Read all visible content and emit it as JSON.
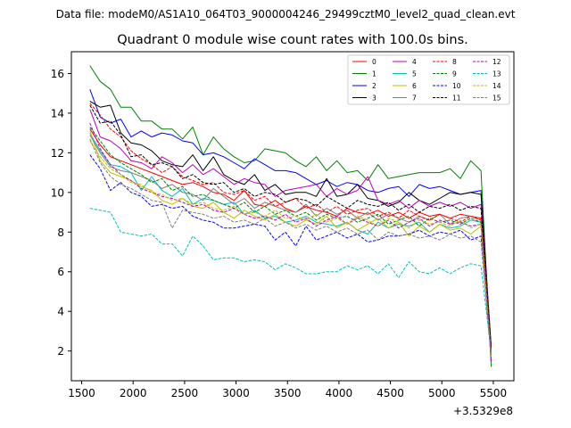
{
  "chart_data": {
    "type": "line",
    "suptitle": "Data file: modeM0/AS1A10_064T03_9000004246_29499cztM0_level2_quad_clean.evt",
    "title": "Quadrant 0 module wise count rates with 100.0s bins.",
    "xlabel": "",
    "ylabel": "",
    "x_offset_label": "+3.5329e8",
    "xlim": [
      1400,
      5700
    ],
    "ylim": [
      0.5,
      17.1
    ],
    "xticks": [
      1500,
      2000,
      2500,
      3000,
      3500,
      4000,
      4500,
      5000,
      5500
    ],
    "yticks": [
      2,
      4,
      6,
      8,
      10,
      12,
      14,
      16
    ],
    "x": [
      1580,
      1680,
      1780,
      1880,
      1980,
      2080,
      2180,
      2280,
      2380,
      2480,
      2580,
      2680,
      2780,
      2880,
      2980,
      3080,
      3180,
      3280,
      3380,
      3480,
      3580,
      3680,
      3780,
      3880,
      3980,
      4080,
      4180,
      4280,
      4380,
      4480,
      4580,
      4680,
      4780,
      4880,
      4980,
      5080,
      5180,
      5280,
      5380,
      5480
    ],
    "legend_location": "upper right",
    "series": [
      {
        "name": "0",
        "color": "#ff0000",
        "dash": "solid",
        "values": [
          13.2,
          12.4,
          11.8,
          11.6,
          11.4,
          11.2,
          11.0,
          10.8,
          10.6,
          10.4,
          10.5,
          10.3,
          10.0,
          9.9,
          9.6,
          10.1,
          9.4,
          9.3,
          9.6,
          9.2,
          9.0,
          9.3,
          9.1,
          9.0,
          8.8,
          9.2,
          9.0,
          8.9,
          9.1,
          8.8,
          9.0,
          8.7,
          9.0,
          8.8,
          8.9,
          8.7,
          8.9,
          8.8,
          8.7,
          1.5
        ]
      },
      {
        "name": "1",
        "color": "#008000",
        "dash": "solid",
        "values": [
          16.4,
          15.6,
          15.2,
          14.3,
          14.3,
          13.6,
          13.6,
          13.2,
          13.2,
          12.7,
          13.3,
          11.9,
          12.8,
          12.2,
          11.8,
          11.5,
          11.6,
          12.2,
          12.1,
          12.0,
          11.6,
          11.3,
          11.8,
          11.1,
          11.6,
          11.0,
          11.1,
          10.6,
          11.4,
          10.7,
          10.8,
          10.9,
          11.0,
          11.0,
          11.0,
          11.2,
          10.7,
          11.6,
          11.1,
          1.2
        ]
      },
      {
        "name": "2",
        "color": "#0000ff",
        "dash": "solid",
        "values": [
          15.2,
          13.8,
          13.5,
          13.7,
          12.8,
          13.1,
          12.8,
          13.0,
          12.9,
          12.6,
          12.5,
          11.9,
          12.0,
          11.8,
          11.5,
          11.2,
          11.7,
          11.4,
          11.1,
          11.1,
          11.0,
          10.7,
          10.4,
          10.6,
          10.3,
          10.5,
          10.4,
          10.1,
          10.0,
          10.2,
          10.3,
          9.8,
          10.4,
          10.2,
          10.3,
          10.1,
          9.9,
          10.0,
          10.1,
          1.8
        ]
      },
      {
        "name": "3",
        "color": "#000000",
        "dash": "solid",
        "values": [
          14.6,
          14.3,
          14.4,
          13.0,
          12.5,
          12.4,
          12.1,
          11.6,
          11.4,
          11.3,
          11.9,
          11.1,
          11.8,
          10.9,
          10.6,
          10.4,
          10.9,
          10.1,
          10.4,
          9.9,
          10.0,
          10.0,
          9.8,
          10.7,
          9.8,
          9.9,
          10.4,
          9.7,
          9.6,
          9.3,
          9.5,
          10.0,
          9.6,
          9.4,
          9.7,
          10.0,
          9.9,
          10.0,
          9.9,
          2.2
        ]
      },
      {
        "name": "4",
        "color": "#bf00bf",
        "dash": "solid",
        "values": [
          14.2,
          12.8,
          12.6,
          12.2,
          11.6,
          11.5,
          11.2,
          11.8,
          11.5,
          11.0,
          11.4,
          10.9,
          11.2,
          10.8,
          10.4,
          10.7,
          10.5,
          10.4,
          9.8,
          10.1,
          10.2,
          10.3,
          10.4,
          9.8,
          10.2,
          9.9,
          10.1,
          10.8,
          9.6,
          9.4,
          9.6,
          9.2,
          9.6,
          9.3,
          9.5,
          9.3,
          9.5,
          9.2,
          9.4,
          2.1
        ]
      },
      {
        "name": "5",
        "color": "#00bfbf",
        "dash": "solid",
        "values": [
          13.0,
          12.1,
          11.4,
          11.3,
          11.0,
          10.1,
          10.8,
          10.1,
          9.8,
          10.2,
          9.4,
          9.7,
          9.6,
          9.4,
          9.5,
          8.9,
          9.1,
          8.7,
          8.8,
          8.5,
          8.6,
          8.8,
          8.5,
          8.4,
          8.3,
          8.5,
          8.1,
          7.9,
          8.5,
          8.2,
          8.4,
          8.3,
          8.5,
          8.0,
          8.4,
          8.2,
          8.3,
          8.6,
          8.5,
          1.6
        ]
      },
      {
        "name": "6",
        "color": "#bfbf00",
        "dash": "solid",
        "values": [
          13.1,
          11.6,
          11.0,
          10.8,
          10.6,
          10.3,
          10.1,
          9.6,
          9.4,
          9.7,
          9.3,
          9.2,
          9.5,
          9.0,
          8.7,
          9.1,
          8.8,
          8.6,
          8.9,
          8.5,
          8.3,
          8.6,
          8.4,
          8.8,
          8.2,
          8.5,
          8.1,
          8.4,
          8.7,
          8.2,
          8.5,
          7.8,
          8.3,
          8.0,
          8.4,
          8.1,
          8.2,
          7.9,
          8.3,
          1.7
        ]
      },
      {
        "name": "7",
        "color": "#808080",
        "dash": "solid",
        "values": [
          12.9,
          12.0,
          11.3,
          11.1,
          11.0,
          10.8,
          10.6,
          10.2,
          10.4,
          10.0,
          9.9,
          9.6,
          10.2,
          9.8,
          9.4,
          9.7,
          9.2,
          9.5,
          9.3,
          9.1,
          9.0,
          9.4,
          8.8,
          9.2,
          8.9,
          9.1,
          8.7,
          9.0,
          8.6,
          8.9,
          8.7,
          8.5,
          8.8,
          8.6,
          8.9,
          8.4,
          8.7,
          8.8,
          8.6,
          1.9
        ]
      },
      {
        "name": "8",
        "color": "#ff0000",
        "dash": "dashed",
        "values": [
          14.5,
          13.9,
          13.2,
          12.8,
          12.1,
          11.7,
          11.4,
          11.0,
          11.3,
          10.8,
          10.6,
          10.4,
          10.5,
          10.0,
          9.9,
          10.1,
          9.6,
          9.8,
          9.3,
          9.5,
          9.7,
          9.2,
          9.4,
          9.0,
          9.3,
          8.9,
          9.1,
          9.2,
          8.8,
          9.0,
          8.7,
          9.1,
          8.8,
          8.6,
          8.9,
          8.7,
          8.5,
          8.8,
          8.6,
          2.0
        ]
      },
      {
        "name": "9",
        "color": "#008000",
        "dash": "dashed",
        "values": [
          13.3,
          12.6,
          11.9,
          11.5,
          11.2,
          10.9,
          10.5,
          10.7,
          10.1,
          10.3,
          9.8,
          9.9,
          9.6,
          9.4,
          9.2,
          9.5,
          9.0,
          9.3,
          8.9,
          9.1,
          8.8,
          9.0,
          8.6,
          8.9,
          8.7,
          8.8,
          8.5,
          8.7,
          8.9,
          8.4,
          8.6,
          8.8,
          8.3,
          8.7,
          8.5,
          8.6,
          8.4,
          8.7,
          8.5,
          1.8
        ]
      },
      {
        "name": "10",
        "color": "#0000ff",
        "dash": "dashed",
        "values": [
          11.9,
          11.2,
          10.1,
          10.5,
          10.0,
          9.8,
          9.3,
          9.4,
          9.2,
          9.3,
          8.8,
          8.6,
          8.5,
          8.2,
          8.2,
          8.3,
          8.4,
          8.3,
          7.6,
          8.0,
          7.3,
          8.3,
          7.6,
          7.8,
          8.0,
          7.7,
          7.9,
          7.5,
          7.6,
          7.8,
          7.8,
          7.9,
          8.1,
          7.8,
          8.0,
          7.9,
          8.1,
          7.6,
          7.8,
          1.6
        ]
      },
      {
        "name": "11",
        "color": "#000000",
        "dash": "dashed",
        "values": [
          14.4,
          13.5,
          13.6,
          12.9,
          11.8,
          11.9,
          11.4,
          11.5,
          11.3,
          10.7,
          10.9,
          10.5,
          10.4,
          10.5,
          10.0,
          10.2,
          9.8,
          10.0,
          9.9,
          9.5,
          9.7,
          9.6,
          9.3,
          9.8,
          9.5,
          9.2,
          9.6,
          9.4,
          9.3,
          9.5,
          9.1,
          9.4,
          9.0,
          9.3,
          9.2,
          9.4,
          9.1,
          9.3,
          9.2,
          2.1
        ]
      },
      {
        "name": "12",
        "color": "#bf00bf",
        "dash": "dashed",
        "values": [
          13.5,
          12.2,
          11.4,
          10.9,
          10.6,
          10.2,
          10.0,
          9.8,
          9.7,
          9.5,
          9.3,
          9.4,
          9.1,
          9.0,
          9.2,
          8.9,
          8.7,
          8.8,
          8.6,
          8.9,
          8.5,
          8.7,
          8.3,
          8.6,
          8.8,
          8.4,
          8.7,
          8.5,
          8.3,
          8.6,
          8.2,
          8.5,
          8.7,
          8.3,
          8.6,
          8.4,
          8.5,
          8.3,
          8.4,
          1.5
        ]
      },
      {
        "name": "13",
        "color": "#00bfbf",
        "dash": "dashed",
        "values": [
          9.2,
          9.1,
          9.0,
          8.0,
          7.9,
          7.8,
          7.9,
          7.4,
          7.4,
          6.8,
          7.8,
          7.3,
          6.6,
          6.7,
          6.7,
          6.5,
          6.6,
          6.5,
          6.1,
          6.4,
          6.2,
          5.9,
          5.9,
          6.0,
          6.0,
          6.3,
          6.1,
          6.3,
          5.9,
          6.4,
          5.7,
          6.5,
          6.0,
          5.9,
          6.2,
          5.9,
          6.2,
          6.4,
          6.3,
          1.9
        ]
      },
      {
        "name": "14",
        "color": "#bfbf00",
        "dash": "dashed",
        "values": [
          12.6,
          11.8,
          11.2,
          10.9,
          10.5,
          10.4,
          10.0,
          9.9,
          9.6,
          9.7,
          9.4,
          9.5,
          9.2,
          9.1,
          9.3,
          8.9,
          9.0,
          8.8,
          9.1,
          8.7,
          8.8,
          8.6,
          8.9,
          8.5,
          8.7,
          8.4,
          8.8,
          8.6,
          8.3,
          8.7,
          8.5,
          8.2,
          8.6,
          8.4,
          8.5,
          8.3,
          8.6,
          8.2,
          8.4,
          1.7
        ]
      },
      {
        "name": "15",
        "color": "#808080",
        "dash": "dashed",
        "values": [
          12.7,
          11.5,
          10.8,
          10.4,
          10.2,
          9.9,
          9.6,
          9.5,
          8.2,
          9.1,
          9.0,
          8.9,
          8.7,
          8.8,
          8.5,
          8.6,
          8.4,
          8.7,
          8.3,
          8.5,
          8.2,
          8.4,
          8.1,
          8.3,
          8.0,
          8.2,
          7.9,
          8.1,
          7.6,
          8.0,
          7.8,
          7.9,
          7.7,
          7.8,
          7.6,
          7.9,
          7.7,
          7.8,
          7.5,
          1.8
        ]
      }
    ]
  }
}
